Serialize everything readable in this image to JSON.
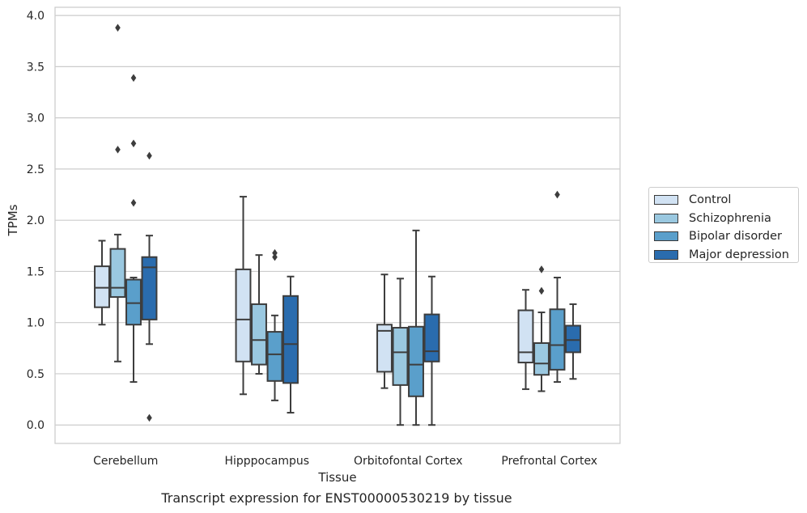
{
  "chart_data": {
    "type": "boxplot",
    "title": "",
    "caption": "Transcript expression for ENST00000530219 by tissue",
    "xlabel": "Tissue",
    "ylabel": "TPMs",
    "ylim": [
      -0.18,
      4.08
    ],
    "yticks": [
      0.0,
      0.5,
      1.0,
      1.5,
      2.0,
      2.5,
      3.0,
      3.5,
      4.0
    ],
    "ytick_labels": [
      "0.0",
      "0.5",
      "1.0",
      "1.5",
      "2.0",
      "2.5",
      "3.0",
      "3.5",
      "4.0"
    ],
    "grid": "horizontal",
    "legend_position": "outside-right",
    "categories": [
      "Cerebellum",
      "Hipppocampus",
      "Orbitofontal Cortex",
      "Prefrontal Cortex"
    ],
    "series": [
      {
        "name": "Control",
        "color": "#d1e2f3",
        "boxes": [
          {
            "whisker_low": 0.98,
            "q1": 1.15,
            "median": 1.34,
            "q3": 1.55,
            "whisker_high": 1.8,
            "outliers": []
          },
          {
            "whisker_low": 0.3,
            "q1": 0.62,
            "median": 1.03,
            "q3": 1.52,
            "whisker_high": 2.23,
            "outliers": []
          },
          {
            "whisker_low": 0.36,
            "q1": 0.52,
            "median": 0.92,
            "q3": 0.98,
            "whisker_high": 1.47,
            "outliers": []
          },
          {
            "whisker_low": 0.35,
            "q1": 0.61,
            "median": 0.71,
            "q3": 1.12,
            "whisker_high": 1.32,
            "outliers": []
          }
        ]
      },
      {
        "name": "Schizophrenia",
        "color": "#9ac8e0",
        "boxes": [
          {
            "whisker_low": 0.62,
            "q1": 1.25,
            "median": 1.34,
            "q3": 1.72,
            "whisker_high": 1.86,
            "outliers": [
              2.69,
              3.88
            ]
          },
          {
            "whisker_low": 0.5,
            "q1": 0.59,
            "median": 0.83,
            "q3": 1.18,
            "whisker_high": 1.66,
            "outliers": []
          },
          {
            "whisker_low": 0.0,
            "q1": 0.39,
            "median": 0.71,
            "q3": 0.95,
            "whisker_high": 1.43,
            "outliers": []
          },
          {
            "whisker_low": 0.33,
            "q1": 0.49,
            "median": 0.6,
            "q3": 0.8,
            "whisker_high": 1.1,
            "outliers": [
              1.31,
              1.52
            ]
          }
        ]
      },
      {
        "name": "Bipolar disorder",
        "color": "#5a9fcb",
        "boxes": [
          {
            "whisker_low": 0.42,
            "q1": 0.98,
            "median": 1.19,
            "q3": 1.42,
            "whisker_high": 1.44,
            "outliers": [
              2.17,
              2.75,
              3.39
            ]
          },
          {
            "whisker_low": 0.24,
            "q1": 0.43,
            "median": 0.69,
            "q3": 0.91,
            "whisker_high": 1.07,
            "outliers": [
              1.64,
              1.68
            ]
          },
          {
            "whisker_low": 0.0,
            "q1": 0.28,
            "median": 0.59,
            "q3": 0.96,
            "whisker_high": 1.9,
            "outliers": []
          },
          {
            "whisker_low": 0.42,
            "q1": 0.54,
            "median": 0.78,
            "q3": 1.13,
            "whisker_high": 1.44,
            "outliers": [
              2.25
            ]
          }
        ]
      },
      {
        "name": "Major depression",
        "color": "#2a6cae",
        "boxes": [
          {
            "whisker_low": 0.79,
            "q1": 1.03,
            "median": 1.54,
            "q3": 1.64,
            "whisker_high": 1.85,
            "outliers": [
              0.07,
              2.63
            ]
          },
          {
            "whisker_low": 0.12,
            "q1": 0.41,
            "median": 0.79,
            "q3": 1.26,
            "whisker_high": 1.45,
            "outliers": []
          },
          {
            "whisker_low": 0.0,
            "q1": 0.62,
            "median": 0.72,
            "q3": 1.08,
            "whisker_high": 1.45,
            "outliers": []
          },
          {
            "whisker_low": 0.45,
            "q1": 0.71,
            "median": 0.83,
            "q3": 0.97,
            "whisker_high": 1.18,
            "outliers": []
          }
        ]
      }
    ]
  }
}
